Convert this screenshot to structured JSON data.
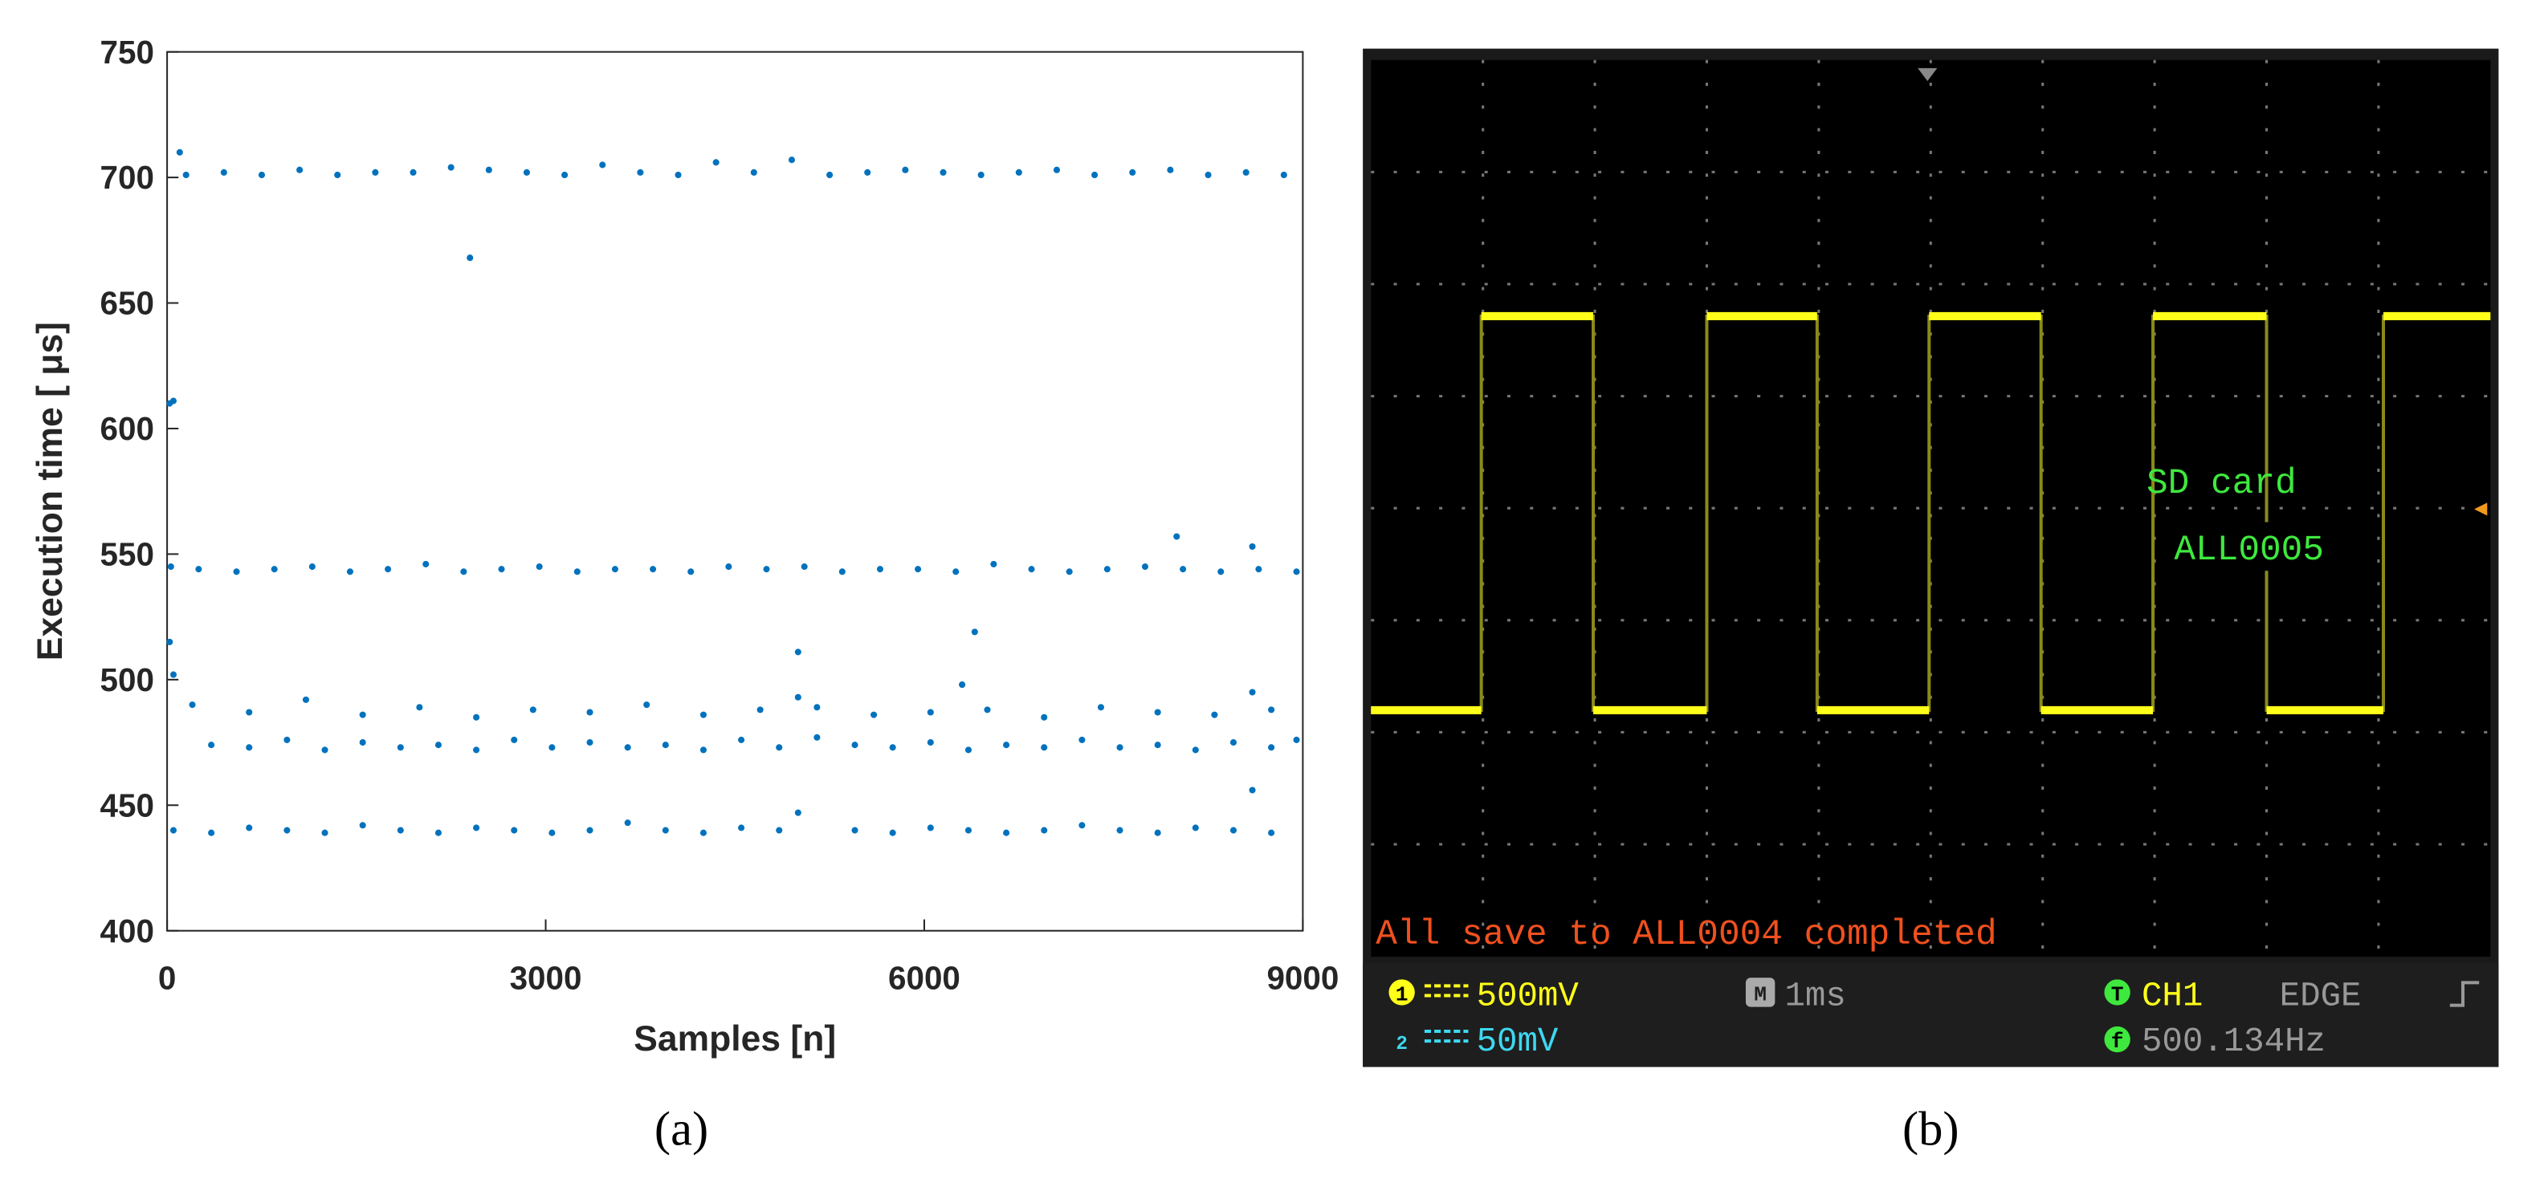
{
  "chart_data": {
    "type": "scatter",
    "xlabel": "Samples [n]",
    "ylabel": "Execution time [ μs]",
    "xlim": [
      0,
      9000
    ],
    "xticks": [
      0,
      3000,
      6000,
      9000
    ],
    "ylim": [
      400,
      750
    ],
    "yticks": [
      400,
      450,
      500,
      550,
      600,
      650,
      700,
      750
    ],
    "grid": false,
    "series": [
      {
        "color": "#0072bd",
        "x": [
          150,
          450,
          750,
          1050,
          1350,
          1650,
          1950,
          2250,
          2550,
          2850,
          3150,
          3450,
          3750,
          4050,
          4350,
          4650,
          4950,
          5250,
          5550,
          5850,
          6150,
          6450,
          6750,
          7050,
          7350,
          7650,
          7950,
          8250,
          8550,
          8850,
          250,
          550,
          850,
          1150,
          1450,
          1750,
          2050,
          2350,
          2650,
          2950,
          3250,
          3550,
          3850,
          4150,
          4450,
          4750,
          5050,
          5350,
          5650,
          5950,
          6250,
          6550,
          6850,
          7150,
          7450,
          7750,
          8050,
          8350,
          8650,
          8950,
          350,
          650,
          950,
          1250,
          1550,
          1850,
          2150,
          2450,
          2750,
          3050,
          3350,
          3650,
          3950,
          4250,
          4550,
          4850,
          5150,
          5450,
          5750,
          6050,
          6350,
          6650,
          6950,
          7250,
          7550,
          7850,
          8150,
          8450,
          8750,
          8950,
          200,
          650,
          1100,
          1550,
          2000,
          2450,
          2900,
          3350,
          3800,
          4250,
          4700,
          5150,
          5600,
          6050,
          6500,
          6950,
          7400,
          7850,
          8300,
          8750,
          50,
          350,
          650,
          950,
          1250,
          1550,
          1850,
          2150,
          2450,
          2750,
          3050,
          3350,
          3650,
          3950,
          4250,
          4550,
          4850,
          5000,
          5450,
          5750,
          6050,
          6350,
          6650,
          6950,
          7250,
          7550,
          7850,
          8150,
          8450,
          8750,
          20,
          50,
          100,
          2400,
          8000,
          8600,
          6400,
          5000,
          20,
          6300,
          8600,
          5000,
          8600,
          50,
          30
        ],
        "values": [
          701,
          702,
          701,
          703,
          701,
          702,
          702,
          704,
          703,
          702,
          701,
          705,
          702,
          701,
          706,
          702,
          707,
          701,
          702,
          703,
          702,
          701,
          702,
          703,
          701,
          702,
          703,
          701,
          702,
          701,
          544,
          543,
          544,
          545,
          543,
          544,
          546,
          543,
          544,
          545,
          543,
          544,
          544,
          543,
          545,
          544,
          545,
          543,
          544,
          544,
          543,
          546,
          544,
          543,
          544,
          545,
          544,
          543,
          544,
          543,
          474,
          473,
          476,
          472,
          475,
          473,
          474,
          472,
          476,
          473,
          475,
          473,
          474,
          472,
          476,
          473,
          477,
          474,
          473,
          475,
          472,
          474,
          473,
          476,
          473,
          474,
          472,
          475,
          473,
          476,
          490,
          487,
          492,
          486,
          489,
          485,
          488,
          487,
          490,
          486,
          488,
          489,
          486,
          487,
          488,
          485,
          489,
          487,
          486,
          488,
          440,
          439,
          441,
          440,
          439,
          442,
          440,
          439,
          441,
          440,
          439,
          440,
          443,
          440,
          439,
          441,
          440,
          447,
          440,
          439,
          441,
          440,
          439,
          440,
          442,
          440,
          439,
          441,
          440,
          439,
          610,
          611,
          710,
          668,
          557,
          553,
          519,
          511,
          515,
          498,
          456,
          493,
          495,
          502,
          545
        ]
      }
    ]
  },
  "oscilloscope": {
    "overlay": [
      "SD card",
      "ALL0005"
    ],
    "message": "All save to ALL0004 completed",
    "status": {
      "ch1_scale": "500mV",
      "timebase": "1ms",
      "trigger_source": "CH1",
      "trigger_mode": "EDGE",
      "ch2_scale": "50mV",
      "frequency": "500.134Hz"
    },
    "icons": {
      "ch1": "1",
      "timebase": "M",
      "trigger": "T",
      "ch2": "2",
      "frequency": "f"
    }
  },
  "captions": {
    "a": "(a)",
    "b": "(b)"
  }
}
